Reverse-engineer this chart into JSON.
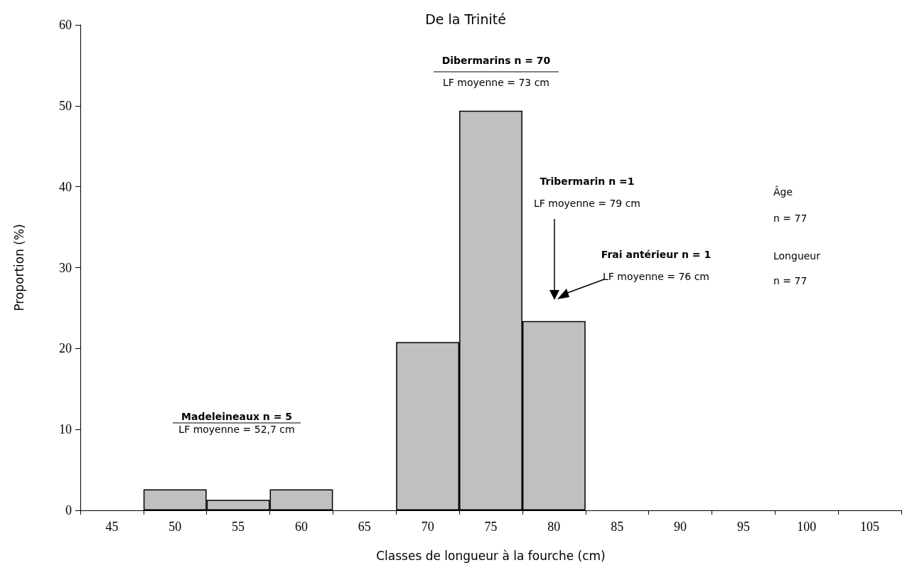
{
  "chart_data": {
    "type": "bar",
    "title": "De la Trinité",
    "xlabel": "Classes de longueur à la fourche (cm)",
    "ylabel": "Proportion (%)",
    "categories": [
      "45",
      "50",
      "55",
      "60",
      "65",
      "70",
      "75",
      "80",
      "85",
      "90",
      "95",
      "100",
      "105"
    ],
    "values": [
      0,
      2.6,
      1.3,
      2.6,
      0,
      20.8,
      49.4,
      23.4,
      0,
      0,
      0,
      0,
      0
    ],
    "color": "#c0c0c0",
    "ylim": [
      0,
      60
    ],
    "yticks": [
      0,
      10,
      20,
      30,
      40,
      50,
      60
    ],
    "grid": false,
    "annotations": [
      "Madeleineaux n = 5",
      "LF moyenne = 52,7 cm",
      "Dibermarins n = 70",
      "LF moyenne = 73 cm",
      "Tribermarin n =1",
      "LF moyenne = 79 cm",
      "Frai antérieur n = 1",
      "LF moyenne = 76 cm",
      "Âge",
      "n = 77",
      "Longueur",
      "n = 77"
    ]
  }
}
